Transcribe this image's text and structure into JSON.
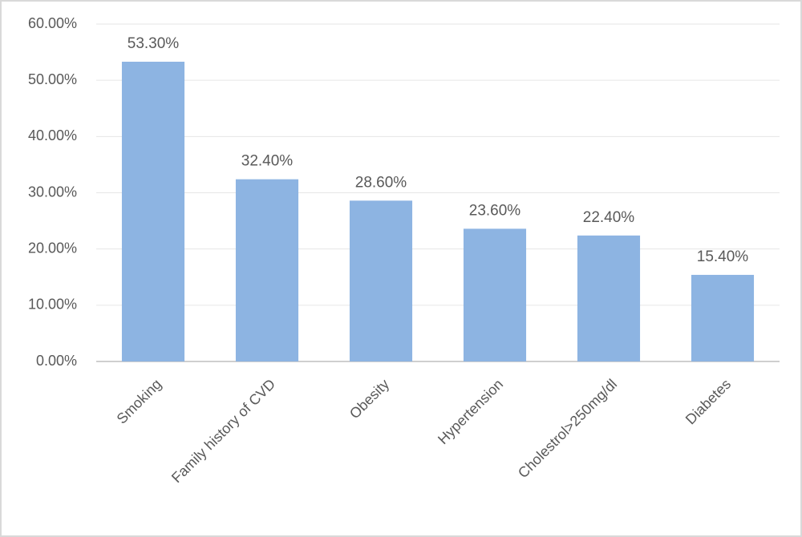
{
  "chart_data": {
    "type": "bar",
    "categories": [
      "Smoking",
      "Family history of CVD",
      "Obesity",
      "Hypertension",
      "Cholestrol>250mg/dl",
      "Diabetes"
    ],
    "values": [
      53.3,
      32.4,
      28.6,
      23.6,
      22.4,
      15.4
    ],
    "value_labels": [
      "53.30%",
      "32.40%",
      "28.60%",
      "23.60%",
      "22.40%",
      "15.40%"
    ],
    "color": "#8db4e2",
    "ylim": [
      0,
      60
    ],
    "yticks": [
      {
        "value": 0,
        "label": "0.00%"
      },
      {
        "value": 10,
        "label": "10.00%"
      },
      {
        "value": 20,
        "label": "20.00%"
      },
      {
        "value": 30,
        "label": "30.00%"
      },
      {
        "value": 40,
        "label": "40.00%"
      },
      {
        "value": 50,
        "label": "50.00%"
      },
      {
        "value": 60,
        "label": "60.00%"
      }
    ],
    "grid": true
  }
}
